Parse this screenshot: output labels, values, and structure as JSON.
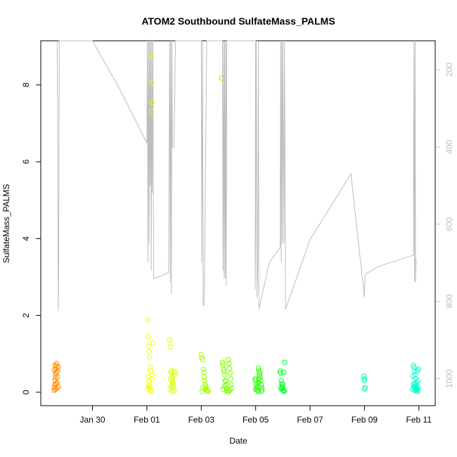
{
  "chart_data": {
    "type": "scatter",
    "title": "ATOM2 Southbound SulfateMass_PALMS",
    "xlabel": "Date",
    "ylabel": "SulfateMass_PALMS",
    "x_ticks": [
      "Jan 30",
      "Feb 01",
      "Feb 03",
      "Feb 05",
      "Feb 07",
      "Feb 09",
      "Feb 11"
    ],
    "x_tick_days": [
      30,
      32,
      34,
      36,
      38,
      40,
      42
    ],
    "xlim": [
      28.1,
      42.6
    ],
    "y_ticks": [
      0,
      2,
      4,
      6,
      8
    ],
    "ylim": [
      -0.35,
      9.15
    ],
    "y2_ticks": [
      200,
      400,
      600,
      800,
      1000
    ],
    "y2lim": [
      1070,
      125
    ],
    "y2_reversed": true,
    "grid": false,
    "altitude_color": "#bdbdbd",
    "series": [
      {
        "color": "#ff8c00",
        "points": [
          [
            28.6,
            0.05
          ],
          [
            28.6,
            0.12
          ],
          [
            28.62,
            0.2
          ],
          [
            28.62,
            0.3
          ],
          [
            28.64,
            0.38
          ],
          [
            28.64,
            0.45
          ],
          [
            28.66,
            0.52
          ],
          [
            28.66,
            0.6
          ],
          [
            28.68,
            0.68
          ],
          [
            28.68,
            0.75
          ],
          [
            28.7,
            0.1
          ],
          [
            28.7,
            0.25
          ],
          [
            28.72,
            0.4
          ],
          [
            28.72,
            0.55
          ],
          [
            28.74,
            0.65
          ],
          [
            28.74,
            0.15
          ],
          [
            28.6,
            0.58
          ],
          [
            28.62,
            0.7
          ],
          [
            28.64,
            0.08
          ],
          [
            28.66,
            0.22
          ]
        ]
      },
      {
        "color": "#f5ff00",
        "points": [
          [
            32.02,
            1.88
          ],
          [
            32.04,
            1.45
          ],
          [
            32.06,
            1.2
          ],
          [
            32.08,
            1.05
          ],
          [
            32.1,
            0.9
          ],
          [
            32.12,
            0.65
          ],
          [
            32.14,
            0.55
          ],
          [
            32.05,
            0.4
          ],
          [
            32.08,
            0.3
          ],
          [
            32.1,
            0.2
          ],
          [
            32.12,
            0.12
          ],
          [
            32.14,
            0.05
          ],
          [
            32.03,
            0.08
          ],
          [
            32.06,
            0.15
          ],
          [
            32.15,
            0.02
          ],
          [
            32.18,
            0.35
          ],
          [
            32.2,
            0.45
          ],
          [
            32.16,
            8.75
          ],
          [
            32.18,
            8.05
          ],
          [
            32.2,
            7.55
          ],
          [
            32.17,
            7.3
          ],
          [
            32.22,
            1.28
          ]
        ]
      },
      {
        "color": "#d4ff00",
        "points": [
          [
            32.84,
            1.35
          ],
          [
            32.86,
            1.18
          ],
          [
            32.88,
            0.55
          ],
          [
            32.9,
            0.5
          ],
          [
            32.92,
            0.4
          ],
          [
            32.94,
            0.3
          ],
          [
            32.96,
            0.2
          ],
          [
            32.98,
            0.12
          ],
          [
            33.0,
            0.05
          ],
          [
            32.85,
            0.08
          ],
          [
            32.9,
            0.15
          ],
          [
            32.95,
            0.25
          ],
          [
            33.02,
            0.45
          ],
          [
            32.87,
            0.35
          ],
          [
            32.92,
            0.02
          ],
          [
            33.04,
            0.52
          ],
          [
            32.98,
            0.55
          ]
        ]
      },
      {
        "color": "#a6ff00",
        "points": [
          [
            34.0,
            0.98
          ],
          [
            34.02,
            0.9
          ],
          [
            34.05,
            0.85
          ],
          [
            34.08,
            0.6
          ],
          [
            34.1,
            0.4
          ],
          [
            34.12,
            0.3
          ],
          [
            34.15,
            0.2
          ],
          [
            34.18,
            0.1
          ],
          [
            34.2,
            0.05
          ],
          [
            34.03,
            0.02
          ],
          [
            34.06,
            0.12
          ],
          [
            34.14,
            0.08
          ],
          [
            34.22,
            0.03
          ],
          [
            34.1,
            0.52
          ],
          [
            34.17,
            0.15
          ],
          [
            34.25,
            0.02
          ]
        ]
      },
      {
        "color": "#7cff00",
        "points": [
          [
            34.78,
            0.78
          ],
          [
            34.8,
            0.72
          ],
          [
            34.82,
            0.6
          ],
          [
            34.84,
            0.55
          ],
          [
            34.86,
            0.45
          ],
          [
            34.88,
            0.3
          ],
          [
            34.9,
            0.2
          ],
          [
            34.92,
            0.1
          ],
          [
            34.94,
            0.05
          ],
          [
            34.96,
            0.02
          ],
          [
            34.8,
            0.08
          ],
          [
            34.85,
            0.15
          ],
          [
            34.9,
            0.28
          ],
          [
            35.0,
            0.85
          ],
          [
            35.02,
            0.75
          ],
          [
            35.04,
            0.62
          ],
          [
            35.06,
            0.5
          ],
          [
            35.08,
            0.35
          ],
          [
            35.1,
            0.2
          ],
          [
            35.12,
            0.1
          ],
          [
            35.0,
            0.02
          ],
          [
            35.05,
            0.05
          ],
          [
            34.75,
            8.18
          ]
        ]
      },
      {
        "color": "#2bff00",
        "points": [
          [
            35.98,
            0.35
          ],
          [
            36.0,
            0.3
          ],
          [
            36.02,
            0.2
          ],
          [
            36.04,
            0.12
          ],
          [
            36.06,
            0.05
          ],
          [
            36.08,
            0.02
          ],
          [
            36.1,
            0.62
          ],
          [
            36.12,
            0.55
          ],
          [
            36.14,
            0.45
          ],
          [
            36.16,
            0.4
          ],
          [
            36.18,
            0.3
          ],
          [
            36.2,
            0.2
          ],
          [
            36.22,
            0.12
          ],
          [
            36.24,
            0.06
          ],
          [
            36.0,
            0.08
          ],
          [
            36.05,
            0.15
          ],
          [
            36.1,
            0.25
          ],
          [
            36.15,
            0.5
          ],
          [
            36.2,
            0.02
          ],
          [
            36.12,
            0.35
          ]
        ]
      },
      {
        "color": "#00ff2e",
        "points": [
          [
            36.9,
            0.55
          ],
          [
            36.92,
            0.5
          ],
          [
            36.94,
            0.3
          ],
          [
            36.96,
            0.22
          ],
          [
            36.98,
            0.15
          ],
          [
            37.0,
            0.1
          ],
          [
            37.02,
            0.05
          ],
          [
            37.04,
            0.02
          ],
          [
            37.06,
            0.78
          ],
          [
            36.95,
            0.08
          ],
          [
            37.0,
            0.2
          ],
          [
            37.03,
            0.52
          ],
          [
            36.92,
            0.12
          ],
          [
            37.05,
            0.03
          ]
        ]
      },
      {
        "color": "#00ff99",
        "points": [
          [
            39.98,
            0.42
          ],
          [
            40.0,
            0.35
          ],
          [
            40.02,
            0.12
          ],
          [
            40.0,
            0.08
          ],
          [
            39.99,
            0.3
          ]
        ]
      },
      {
        "color": "#00ffd0",
        "points": [
          [
            41.8,
            0.7
          ],
          [
            41.82,
            0.65
          ],
          [
            41.84,
            0.55
          ],
          [
            41.86,
            0.45
          ],
          [
            41.88,
            0.35
          ],
          [
            41.9,
            0.25
          ],
          [
            41.92,
            0.15
          ],
          [
            41.94,
            0.08
          ],
          [
            41.96,
            0.02
          ],
          [
            41.8,
            0.2
          ],
          [
            41.82,
            0.12
          ],
          [
            41.85,
            0.05
          ],
          [
            41.88,
            0.18
          ],
          [
            41.9,
            0.1
          ],
          [
            41.92,
            0.03
          ],
          [
            41.78,
            0.42
          ],
          [
            41.98,
            0.6
          ],
          [
            41.84,
            0.22
          ],
          [
            41.86,
            0.14
          ],
          [
            41.9,
            0.06
          ],
          [
            41.94,
            0.55
          ],
          [
            41.96,
            0.3
          ],
          [
            41.99,
            0.13
          ],
          [
            41.76,
            0.08
          ]
        ]
      }
    ],
    "altitude_line": [
      [
        28.7,
        125
      ],
      [
        28.72,
        300
      ],
      [
        28.74,
        825
      ],
      [
        28.76,
        700
      ],
      [
        28.78,
        125
      ],
      [
        29.1,
        125
      ],
      [
        30.0,
        125
      ],
      [
        31.0,
        250
      ],
      [
        32.0,
        390
      ],
      [
        32.02,
        125
      ],
      [
        32.04,
        700
      ],
      [
        32.06,
        125
      ],
      [
        32.08,
        650
      ],
      [
        32.1,
        125
      ],
      [
        32.12,
        500
      ],
      [
        32.14,
        125
      ],
      [
        32.16,
        720
      ],
      [
        32.18,
        125
      ],
      [
        32.2,
        520
      ],
      [
        32.22,
        125
      ],
      [
        32.25,
        740
      ],
      [
        32.5,
        735
      ],
      [
        32.8,
        725
      ],
      [
        32.84,
        125
      ],
      [
        32.86,
        750
      ],
      [
        32.88,
        125
      ],
      [
        32.9,
        780
      ],
      [
        32.92,
        125
      ],
      [
        32.94,
        400
      ],
      [
        33.0,
        400
      ],
      [
        33.05,
        125
      ],
      [
        34.0,
        125
      ],
      [
        34.02,
        700
      ],
      [
        34.05,
        125
      ],
      [
        34.07,
        810
      ],
      [
        34.1,
        810
      ],
      [
        34.12,
        730
      ],
      [
        34.2,
        125
      ],
      [
        34.78,
        125
      ],
      [
        34.8,
        720
      ],
      [
        34.82,
        125
      ],
      [
        34.84,
        740
      ],
      [
        34.86,
        125
      ],
      [
        34.88,
        740
      ],
      [
        34.9,
        125
      ],
      [
        34.92,
        760
      ],
      [
        34.94,
        125
      ],
      [
        36.0,
        125
      ],
      [
        35.98,
        770
      ],
      [
        36.0,
        640
      ],
      [
        36.02,
        125
      ],
      [
        36.05,
        790
      ],
      [
        36.08,
        690
      ],
      [
        36.1,
        125
      ],
      [
        36.12,
        820
      ],
      [
        36.5,
        700
      ],
      [
        36.9,
        660
      ],
      [
        36.92,
        125
      ],
      [
        36.94,
        700
      ],
      [
        36.96,
        125
      ],
      [
        36.98,
        650
      ],
      [
        37.0,
        125
      ],
      [
        37.04,
        650
      ],
      [
        37.06,
        125
      ],
      [
        37.1,
        820
      ],
      [
        37.5,
        740
      ],
      [
        38.0,
        640
      ],
      [
        39.5,
        470
      ],
      [
        40.0,
        790
      ],
      [
        40.02,
        730
      ],
      [
        40.5,
        710
      ],
      [
        41.8,
        680
      ],
      [
        41.82,
        125
      ],
      [
        41.84,
        750
      ],
      [
        41.86,
        125
      ],
      [
        41.88,
        750
      ],
      [
        41.9,
        690
      ]
    ]
  }
}
